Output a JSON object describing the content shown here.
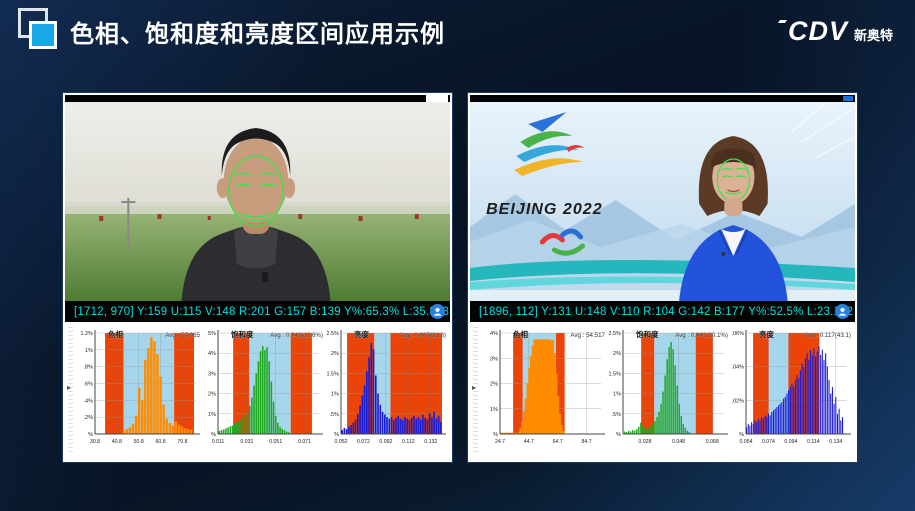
{
  "header": {
    "title": "色相、饱和度和亮度区间应用示例",
    "logo_brand": "CDV",
    "logo_sub": "新奥特"
  },
  "left_monitor": {
    "status": "[1712, 970] Y:159 U:115 V:148 R:201 G:157 B:139 Y%:65.3% L:35.853"
  },
  "right_monitor": {
    "status": "[1896, 112] Y:131 U:148 V:110 R:104 G:142 B:177 Y%:52.5% L:23.172",
    "video_text": "BEIJING 2022"
  },
  "colors": {
    "accent_blue": "#18a8e6",
    "status_cyan": "#00e0e0",
    "band_out": "#ea4408",
    "band_in": "#a5d6ec",
    "hue_bar": "#ff8c00",
    "sat_bar": "#1fa81f",
    "lum_bar": "#1c1cd0"
  },
  "chart_data": [
    {
      "type": "bar",
      "panel": "left",
      "title": "色相",
      "avg_label": "Avg : 57.965",
      "x_range": [
        30.8,
        77.0
      ],
      "x_tick_values": [
        30.8,
        40.8,
        50.8,
        60.8,
        70.8
      ],
      "x_tick_labels": [
        "30.8",
        "40.8",
        "50.8",
        "60.8",
        "70.8"
      ],
      "y_ticks": [
        "1.2%",
        "1%",
        ".8%",
        ".6%",
        ".4%",
        ".2%",
        "%"
      ],
      "y_max": 1.2,
      "bar_color": "#ff8c00",
      "grid": true,
      "legend": "none",
      "bands": [
        {
          "from": 35.4,
          "to": 43.9,
          "type": "out"
        },
        {
          "from": 43.9,
          "to": 67.0,
          "type": "in"
        },
        {
          "from": 67.0,
          "to": 76.1,
          "type": "out"
        }
      ],
      "bars": [
        [
          44.0,
          0.04
        ],
        [
          45.4,
          0.06
        ],
        [
          46.8,
          0.08
        ],
        [
          48.2,
          0.12
        ],
        [
          49.6,
          0.22
        ],
        [
          51.0,
          0.55
        ],
        [
          52.4,
          0.4
        ],
        [
          53.8,
          0.88
        ],
        [
          55.2,
          1.02
        ],
        [
          56.6,
          1.15
        ],
        [
          58.0,
          1.1
        ],
        [
          59.4,
          0.95
        ],
        [
          60.8,
          0.68
        ],
        [
          62.2,
          0.35
        ],
        [
          63.6,
          0.18
        ],
        [
          65.0,
          0.13
        ],
        [
          66.4,
          0.1
        ],
        [
          67.8,
          0.15
        ],
        [
          69.2,
          0.11
        ],
        [
          70.6,
          0.09
        ],
        [
          72.0,
          0.07
        ],
        [
          73.4,
          0.06
        ],
        [
          74.8,
          0.05
        ]
      ]
    },
    {
      "type": "bar",
      "panel": "left",
      "title": "饱和度",
      "avg_label": "Avg : 0.042(19.6%)",
      "x_range": [
        0.011,
        0.081
      ],
      "x_tick_values": [
        0.011,
        0.031,
        0.051,
        0.071
      ],
      "x_tick_labels": [
        "0.011",
        "0.031",
        "0.051",
        "0.071"
      ],
      "y_ticks": [
        "5%",
        "4%",
        "3%",
        "2%",
        "1%",
        "%"
      ],
      "y_max": 5,
      "bar_color": "#1fa81f",
      "grid": true,
      "legend": "none",
      "bands": [
        {
          "from": 0.0215,
          "to": 0.0327,
          "type": "out"
        },
        {
          "from": 0.0327,
          "to": 0.0614,
          "type": "in"
        },
        {
          "from": 0.0614,
          "to": 0.0761,
          "type": "out"
        }
      ],
      "bars": [
        [
          0.012,
          0.15
        ],
        [
          0.0135,
          0.2
        ],
        [
          0.015,
          0.22
        ],
        [
          0.0165,
          0.28
        ],
        [
          0.018,
          0.32
        ],
        [
          0.0195,
          0.38
        ],
        [
          0.021,
          0.42
        ],
        [
          0.0225,
          0.48
        ],
        [
          0.024,
          0.55
        ],
        [
          0.0255,
          0.62
        ],
        [
          0.027,
          0.72
        ],
        [
          0.0285,
          0.82
        ],
        [
          0.03,
          0.95
        ],
        [
          0.0315,
          1.1
        ],
        [
          0.033,
          1.4
        ],
        [
          0.0345,
          1.8
        ],
        [
          0.036,
          2.4
        ],
        [
          0.0375,
          3.0
        ],
        [
          0.039,
          3.6
        ],
        [
          0.0405,
          4.1
        ],
        [
          0.042,
          4.35
        ],
        [
          0.0435,
          4.15
        ],
        [
          0.045,
          4.3
        ],
        [
          0.0465,
          3.6
        ],
        [
          0.048,
          2.6
        ],
        [
          0.0495,
          1.6
        ],
        [
          0.051,
          0.9
        ],
        [
          0.0525,
          0.55
        ],
        [
          0.054,
          0.35
        ],
        [
          0.0555,
          0.25
        ],
        [
          0.057,
          0.18
        ],
        [
          0.0585,
          0.12
        ],
        [
          0.06,
          0.08
        ]
      ]
    },
    {
      "type": "bar",
      "panel": "left",
      "title": "亮度",
      "avg_label": "Avg : 0.087(21.8)",
      "x_range": [
        0.052,
        0.142
      ],
      "x_tick_values": [
        0.052,
        0.072,
        0.092,
        0.112,
        0.132
      ],
      "x_tick_labels": [
        "0.052",
        "0.072",
        "0.092",
        "0.112",
        "0.132"
      ],
      "y_ticks": [
        "2.5%",
        "2%",
        "1.5%",
        "1%",
        ".5%",
        "%"
      ],
      "y_max": 2.5,
      "bar_color": "#1c1cd0",
      "grid": true,
      "legend": "none",
      "bands": [
        {
          "from": 0.0574,
          "to": 0.0817,
          "type": "out"
        },
        {
          "from": 0.0817,
          "to": 0.0961,
          "type": "in"
        },
        {
          "from": 0.0961,
          "to": 0.142,
          "type": "out"
        }
      ],
      "bars": [
        [
          0.053,
          0.1
        ],
        [
          0.055,
          0.15
        ],
        [
          0.057,
          0.12
        ],
        [
          0.059,
          0.18
        ],
        [
          0.061,
          0.22
        ],
        [
          0.063,
          0.28
        ],
        [
          0.065,
          0.35
        ],
        [
          0.067,
          0.5
        ],
        [
          0.069,
          0.7
        ],
        [
          0.071,
          0.95
        ],
        [
          0.073,
          1.2
        ],
        [
          0.075,
          1.55
        ],
        [
          0.077,
          1.9
        ],
        [
          0.079,
          2.25
        ],
        [
          0.081,
          2.1
        ],
        [
          0.083,
          1.45
        ],
        [
          0.085,
          1.0
        ],
        [
          0.087,
          0.72
        ],
        [
          0.089,
          0.55
        ],
        [
          0.091,
          0.48
        ],
        [
          0.093,
          0.42
        ],
        [
          0.095,
          0.38
        ],
        [
          0.097,
          0.42
        ],
        [
          0.099,
          0.35
        ],
        [
          0.101,
          0.4
        ],
        [
          0.103,
          0.44
        ],
        [
          0.105,
          0.38
        ],
        [
          0.107,
          0.35
        ],
        [
          0.109,
          0.42
        ],
        [
          0.111,
          0.38
        ],
        [
          0.113,
          0.35
        ],
        [
          0.115,
          0.4
        ],
        [
          0.117,
          0.45
        ],
        [
          0.119,
          0.38
        ],
        [
          0.121,
          0.42
        ],
        [
          0.123,
          0.36
        ],
        [
          0.125,
          0.48
        ],
        [
          0.127,
          0.4
        ],
        [
          0.129,
          0.36
        ],
        [
          0.131,
          0.52
        ],
        [
          0.133,
          0.42
        ],
        [
          0.135,
          0.55
        ],
        [
          0.137,
          0.38
        ],
        [
          0.139,
          0.45
        ],
        [
          0.141,
          0.3
        ]
      ]
    },
    {
      "type": "bar",
      "panel": "right",
      "title": "色相",
      "avg_label": "Avg : 54.517",
      "x_range": [
        24.7,
        94.7
      ],
      "x_tick_values": [
        24.7,
        44.7,
        64.7,
        84.7
      ],
      "x_tick_labels": [
        "24.7",
        "44.7",
        "64.7",
        "84.7"
      ],
      "y_ticks": [
        "4%",
        "3%",
        "2%",
        "1%",
        "%"
      ],
      "y_max": 4,
      "bar_color": "#ff8c00",
      "grid": true,
      "legend": "none",
      "bands": [
        {
          "from": 33.8,
          "to": 40.5,
          "type": "out"
        },
        {
          "from": 40.5,
          "to": 63.5,
          "type": "in"
        },
        {
          "from": 63.5,
          "to": 69.5,
          "type": "out"
        }
      ],
      "bars": [
        [
          30.7,
          0.05
        ],
        [
          43.0,
          0.1
        ],
        [
          44.2,
          0.25
        ],
        [
          45.4,
          0.5
        ],
        [
          46.6,
          0.9
        ],
        [
          47.8,
          1.4
        ],
        [
          49.0,
          2.0
        ],
        [
          50.2,
          2.6
        ],
        [
          51.4,
          3.1
        ],
        [
          52.6,
          3.5
        ],
        [
          53.8,
          3.75
        ],
        [
          55.0,
          3.6
        ],
        [
          56.2,
          3.72
        ],
        [
          57.4,
          3.2
        ],
        [
          58.6,
          2.4
        ],
        [
          59.8,
          1.5
        ],
        [
          61.0,
          0.8
        ],
        [
          62.2,
          0.35
        ],
        [
          63.4,
          0.12
        ]
      ]
    },
    {
      "type": "bar",
      "panel": "right",
      "title": "饱和度",
      "avg_label": "Avg : 0.043(20.1%)",
      "x_range": [
        0.015,
        0.075
      ],
      "x_tick_values": [
        0.028,
        0.048,
        0.068
      ],
      "x_tick_labels": [
        "0.028",
        "0.048",
        "0.068"
      ],
      "y_ticks": [
        "2.5%",
        "2%",
        "1.5%",
        "1%",
        ".5%",
        "%"
      ],
      "y_max": 2.5,
      "bar_color": "#1fa81f",
      "grid": true,
      "legend": "none",
      "bands": [
        {
          "from": 0.0258,
          "to": 0.0336,
          "type": "out"
        },
        {
          "from": 0.0336,
          "to": 0.0582,
          "type": "in"
        },
        {
          "from": 0.0582,
          "to": 0.0684,
          "type": "out"
        }
      ],
      "bars": [
        [
          0.016,
          0.06
        ],
        [
          0.0172,
          0.05
        ],
        [
          0.0184,
          0.08
        ],
        [
          0.0196,
          0.06
        ],
        [
          0.0208,
          0.1
        ],
        [
          0.022,
          0.08
        ],
        [
          0.0232,
          0.12
        ],
        [
          0.0244,
          0.18
        ],
        [
          0.0256,
          0.28
        ],
        [
          0.0268,
          0.2
        ],
        [
          0.028,
          0.15
        ],
        [
          0.0292,
          0.12
        ],
        [
          0.0304,
          0.15
        ],
        [
          0.0316,
          0.2
        ],
        [
          0.0328,
          0.25
        ],
        [
          0.034,
          0.32
        ],
        [
          0.0352,
          0.42
        ],
        [
          0.0364,
          0.55
        ],
        [
          0.0376,
          0.75
        ],
        [
          0.0388,
          1.05
        ],
        [
          0.04,
          1.45
        ],
        [
          0.0412,
          1.85
        ],
        [
          0.0424,
          2.15
        ],
        [
          0.0436,
          2.28
        ],
        [
          0.0448,
          2.1
        ],
        [
          0.046,
          1.7
        ],
        [
          0.0472,
          1.2
        ],
        [
          0.0484,
          0.75
        ],
        [
          0.0496,
          0.45
        ],
        [
          0.0508,
          0.25
        ],
        [
          0.052,
          0.15
        ],
        [
          0.0532,
          0.08
        ],
        [
          0.0544,
          0.05
        ]
      ]
    },
    {
      "type": "bar",
      "panel": "right",
      "title": "亮度",
      "avg_label": "Avg : 0.117(43.1)",
      "x_range": [
        0.054,
        0.144
      ],
      "x_tick_values": [
        0.054,
        0.074,
        0.094,
        0.114,
        0.134
      ],
      "x_tick_labels": [
        "0.054",
        "0.074",
        "0.094",
        "0.114",
        "0.134"
      ],
      "y_ticks": [
        ".06%",
        ".04%",
        ".02%",
        "%"
      ],
      "y_max": 0.06,
      "bar_color": "#1c1cd0",
      "grid": true,
      "legend": "none",
      "bands": [
        {
          "from": 0.0603,
          "to": 0.0743,
          "type": "out"
        },
        {
          "from": 0.0743,
          "to": 0.0918,
          "type": "in"
        },
        {
          "from": 0.0918,
          "to": 0.1193,
          "type": "out"
        }
      ],
      "bars": [
        [
          0.0545,
          0.004
        ],
        [
          0.056,
          0.006
        ],
        [
          0.0575,
          0.005
        ],
        [
          0.059,
          0.007
        ],
        [
          0.0605,
          0.006
        ],
        [
          0.062,
          0.008
        ],
        [
          0.0635,
          0.007
        ],
        [
          0.065,
          0.009
        ],
        [
          0.0665,
          0.008
        ],
        [
          0.068,
          0.01
        ],
        [
          0.0695,
          0.009
        ],
        [
          0.071,
          0.011
        ],
        [
          0.0725,
          0.01
        ],
        [
          0.074,
          0.012
        ],
        [
          0.0755,
          0.011
        ],
        [
          0.077,
          0.013
        ],
        [
          0.0785,
          0.014
        ],
        [
          0.08,
          0.015
        ],
        [
          0.0815,
          0.016
        ],
        [
          0.083,
          0.017
        ],
        [
          0.0845,
          0.018
        ],
        [
          0.086,
          0.019
        ],
        [
          0.0875,
          0.021
        ],
        [
          0.089,
          0.022
        ],
        [
          0.0905,
          0.024
        ],
        [
          0.092,
          0.026
        ],
        [
          0.0935,
          0.028
        ],
        [
          0.095,
          0.03
        ],
        [
          0.0965,
          0.028
        ],
        [
          0.098,
          0.032
        ],
        [
          0.0995,
          0.035
        ],
        [
          0.101,
          0.033
        ],
        [
          0.1025,
          0.038
        ],
        [
          0.104,
          0.042
        ],
        [
          0.1055,
          0.04
        ],
        [
          0.107,
          0.045
        ],
        [
          0.1085,
          0.048
        ],
        [
          0.11,
          0.044
        ],
        [
          0.1115,
          0.05
        ],
        [
          0.113,
          0.047
        ],
        [
          0.1145,
          0.051
        ],
        [
          0.116,
          0.046
        ],
        [
          0.1175,
          0.049
        ],
        [
          0.119,
          0.052
        ],
        [
          0.1205,
          0.047
        ],
        [
          0.122,
          0.05
        ],
        [
          0.1235,
          0.044
        ],
        [
          0.125,
          0.048
        ],
        [
          0.1265,
          0.04
        ],
        [
          0.128,
          0.032
        ],
        [
          0.1295,
          0.024
        ],
        [
          0.131,
          0.028
        ],
        [
          0.1325,
          0.018
        ],
        [
          0.134,
          0.022
        ],
        [
          0.1355,
          0.012
        ],
        [
          0.137,
          0.015
        ],
        [
          0.1385,
          0.008
        ],
        [
          0.14,
          0.01
        ]
      ]
    }
  ]
}
